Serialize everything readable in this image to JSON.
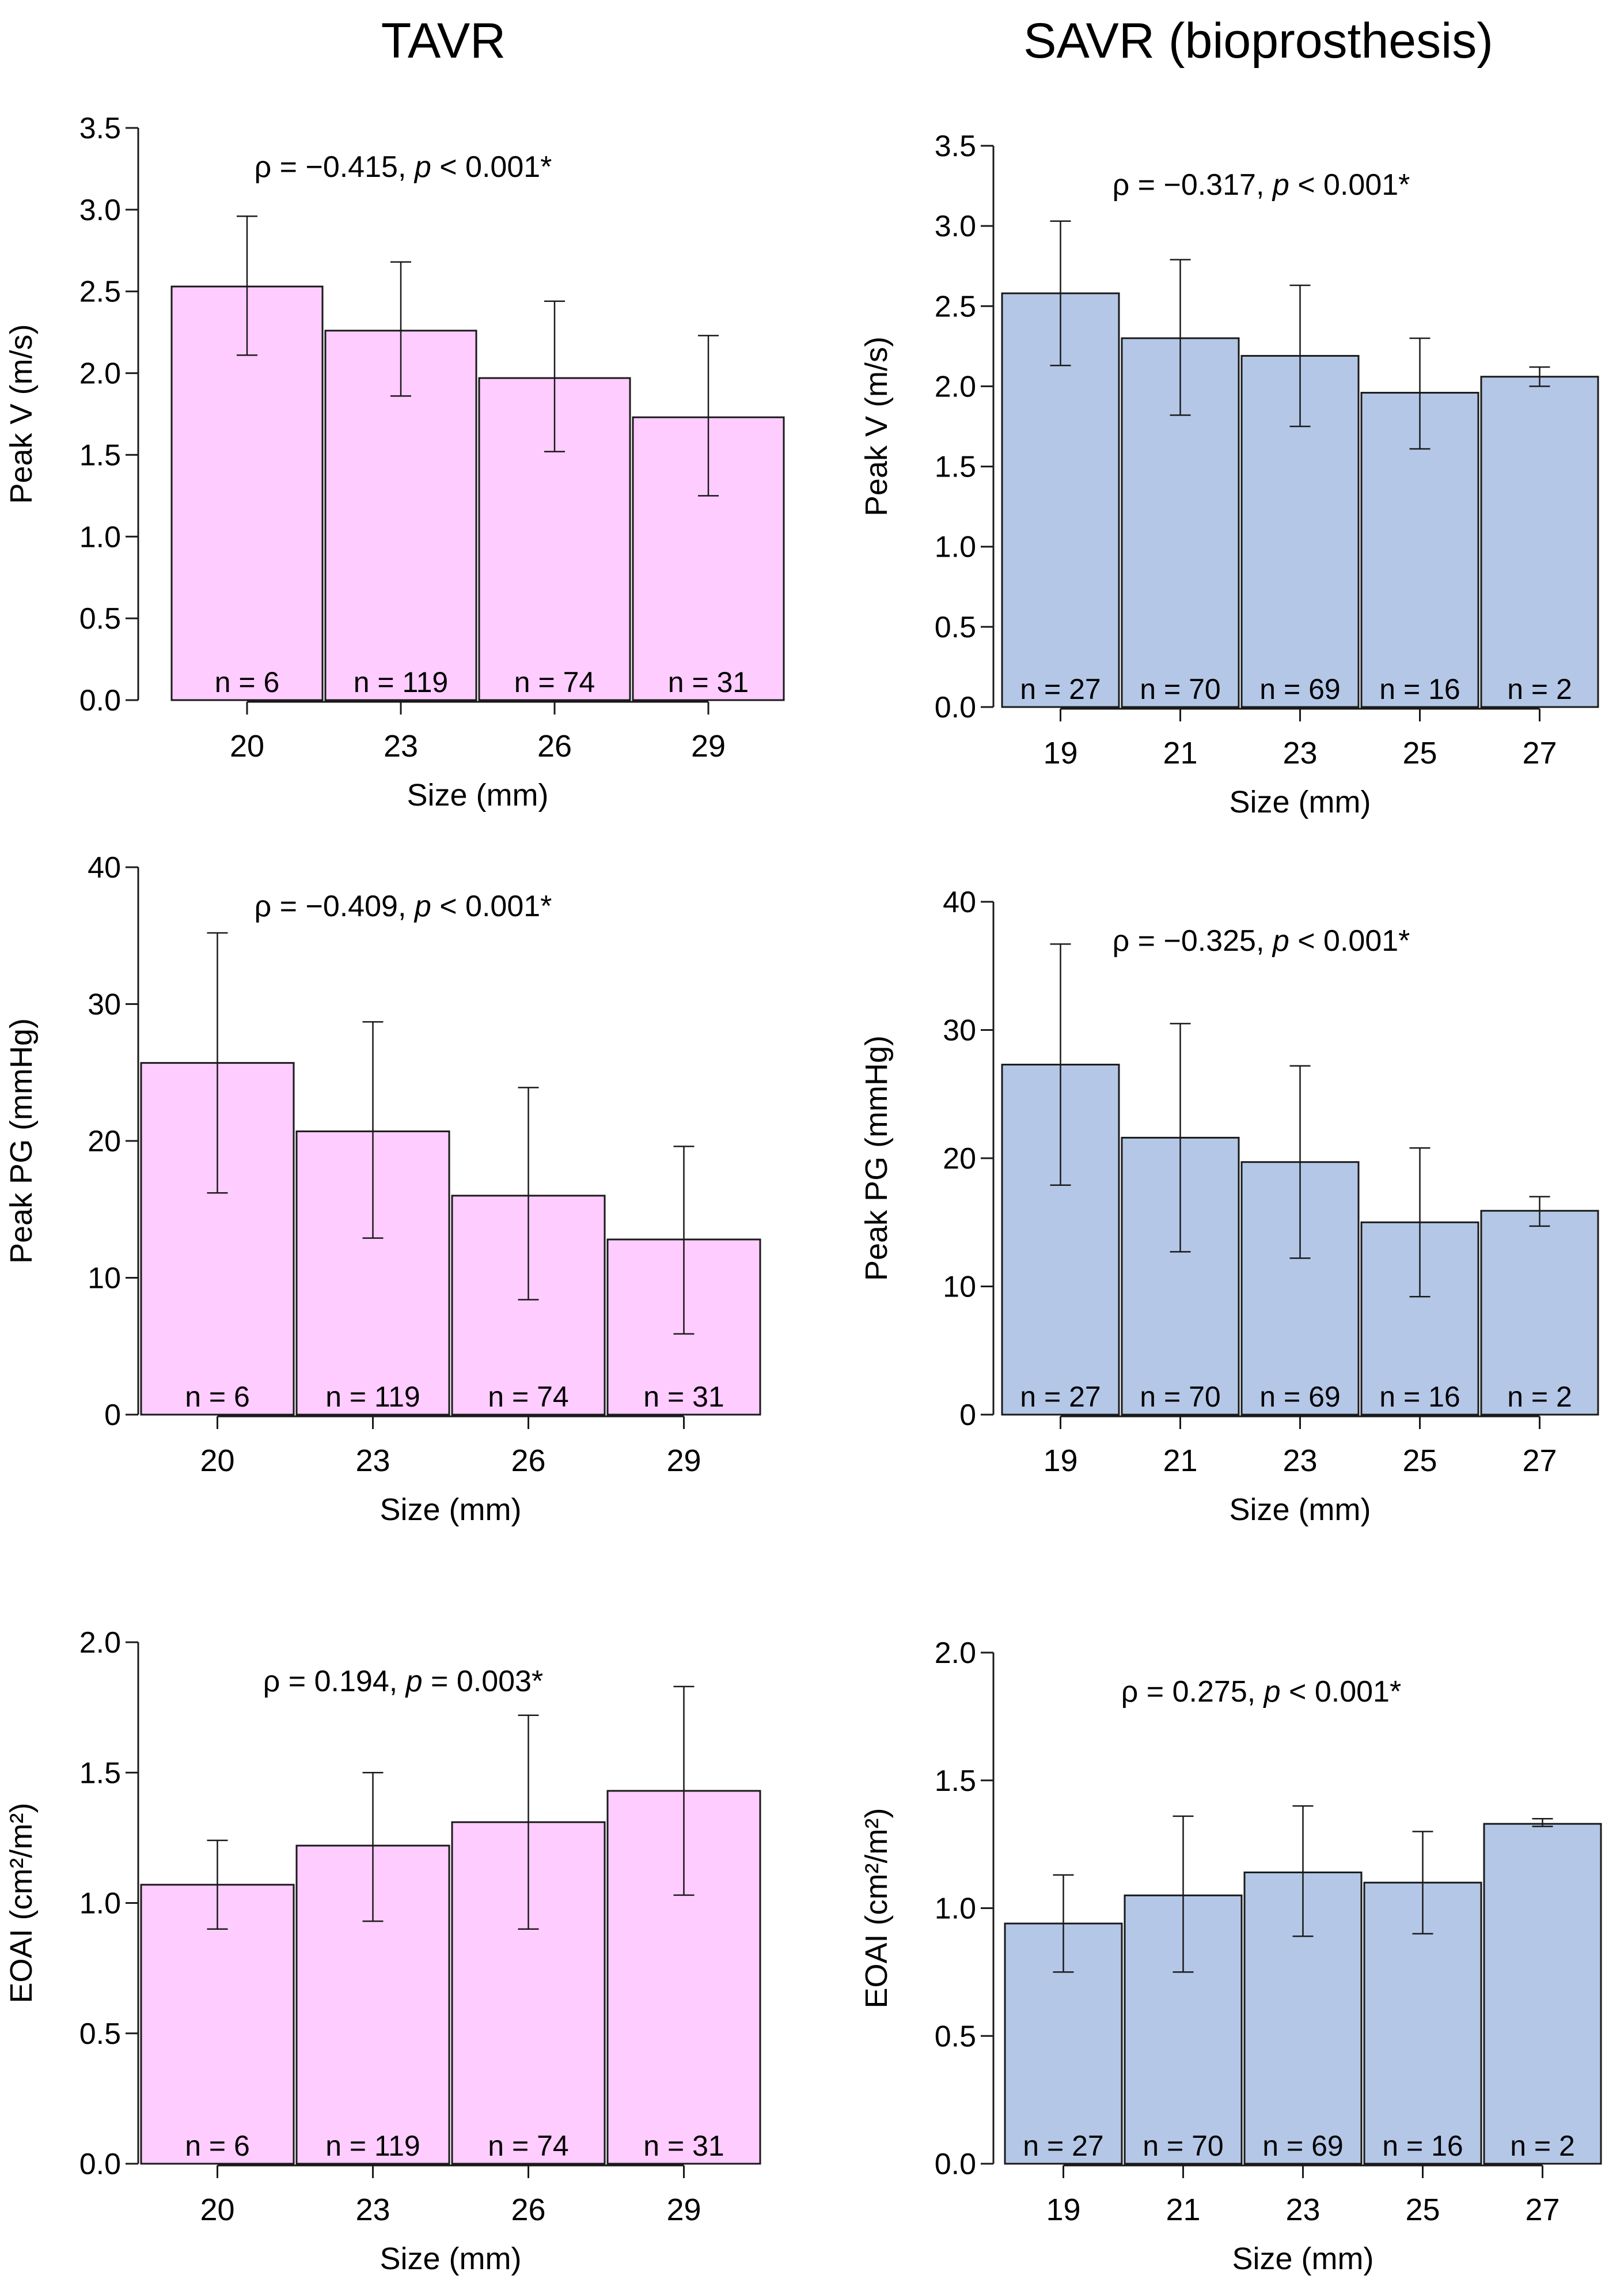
{
  "columns": [
    {
      "title": "TAVR"
    },
    {
      "title": "SAVR (bioprosthesis)"
    }
  ],
  "colors": {
    "tavr_fill": "#FFCCFF",
    "savr_fill": "#B4C7E7",
    "stroke": "#1a1a1a"
  },
  "chart_data": [
    {
      "id": "tavr-peak-v",
      "group": "TAVR",
      "type": "bar",
      "title": "",
      "xlabel": "Size (mm)",
      "ylabel": "Peak V (m/s)",
      "ylim": [
        0,
        3.5
      ],
      "yticks": [
        "0.0",
        "0.5",
        "1.0",
        "1.5",
        "2.0",
        "2.5",
        "3.0",
        "3.5"
      ],
      "categories": [
        "20",
        "23",
        "26",
        "29"
      ],
      "values": [
        2.53,
        2.26,
        1.97,
        1.73
      ],
      "error_low": [
        2.11,
        1.86,
        1.52,
        1.25
      ],
      "error_high": [
        2.96,
        2.68,
        2.44,
        2.23
      ],
      "n_labels": [
        "n = 6",
        "n = 119",
        "n = 74",
        "n = 31"
      ],
      "stat_rho": "ρ = −0.415, ",
      "stat_p": "p",
      "stat_rest": " < 0.001*"
    },
    {
      "id": "savr-peak-v",
      "group": "SAVR (bioprosthesis)",
      "type": "bar",
      "title": "",
      "xlabel": "Size (mm)",
      "ylabel": "Peak V (m/s)",
      "ylim": [
        0,
        3.5
      ],
      "yticks": [
        "0.0",
        "0.5",
        "1.0",
        "1.5",
        "2.0",
        "2.5",
        "3.0",
        "3.5"
      ],
      "categories": [
        "19",
        "21",
        "23",
        "25",
        "27"
      ],
      "values": [
        2.58,
        2.3,
        2.19,
        1.96,
        2.06
      ],
      "error_low": [
        2.13,
        1.82,
        1.75,
        1.61,
        2.0
      ],
      "error_high": [
        3.03,
        2.79,
        2.63,
        2.3,
        2.12
      ],
      "n_labels": [
        "n = 27",
        "n = 70",
        "n = 69",
        "n = 16",
        "n = 2"
      ],
      "stat_rho": "ρ = −0.317, ",
      "stat_p": "p",
      "stat_rest": " < 0.001*"
    },
    {
      "id": "tavr-peak-pg",
      "group": "TAVR",
      "type": "bar",
      "title": "",
      "xlabel": "Size (mm)",
      "ylabel": "Peak PG (mmHg)",
      "ylim": [
        0,
        40
      ],
      "yticks": [
        "0",
        "10",
        "20",
        "30",
        "40"
      ],
      "categories": [
        "20",
        "23",
        "26",
        "29"
      ],
      "values": [
        25.7,
        20.7,
        16.0,
        12.8
      ],
      "error_low": [
        16.2,
        12.9,
        8.4,
        5.9
      ],
      "error_high": [
        35.2,
        28.7,
        23.9,
        19.6
      ],
      "n_labels": [
        "n = 6",
        "n = 119",
        "n = 74",
        "n = 31"
      ],
      "stat_rho": "ρ = −0.409, ",
      "stat_p": "p",
      "stat_rest": " < 0.001*"
    },
    {
      "id": "savr-peak-pg",
      "group": "SAVR (bioprosthesis)",
      "type": "bar",
      "title": "",
      "xlabel": "Size (mm)",
      "ylabel": "Peak PG (mmHg)",
      "ylim": [
        0,
        40
      ],
      "yticks": [
        "0",
        "10",
        "20",
        "30",
        "40"
      ],
      "categories": [
        "19",
        "21",
        "23",
        "25",
        "27"
      ],
      "values": [
        27.3,
        21.6,
        19.7,
        15.0,
        15.9
      ],
      "error_low": [
        17.9,
        12.7,
        12.2,
        9.2,
        14.7
      ],
      "error_high": [
        36.7,
        30.5,
        27.2,
        20.8,
        17.0
      ],
      "n_labels": [
        "n = 27",
        "n = 70",
        "n = 69",
        "n = 16",
        "n = 2"
      ],
      "stat_rho": "ρ = −0.325, ",
      "stat_p": "p",
      "stat_rest": " < 0.001*"
    },
    {
      "id": "tavr-eoai",
      "group": "TAVR",
      "type": "bar",
      "title": "",
      "xlabel": "Size (mm)",
      "ylabel": "EOAI (cm²/m²)",
      "ylim": [
        0,
        2.0
      ],
      "yticks": [
        "0.0",
        "0.5",
        "1.0",
        "1.5",
        "2.0"
      ],
      "categories": [
        "20",
        "23",
        "26",
        "29"
      ],
      "values": [
        1.07,
        1.22,
        1.31,
        1.43
      ],
      "error_low": [
        0.9,
        0.93,
        0.9,
        1.03
      ],
      "error_high": [
        1.24,
        1.5,
        1.72,
        1.83
      ],
      "n_labels": [
        "n = 6",
        "n = 119",
        "n = 74",
        "n = 31"
      ],
      "stat_rho": "ρ = 0.194, ",
      "stat_p": "p",
      "stat_rest": " = 0.003*"
    },
    {
      "id": "savr-eoai",
      "group": "SAVR (bioprosthesis)",
      "type": "bar",
      "title": "",
      "xlabel": "Size (mm)",
      "ylabel": "EOAI (cm²/m²)",
      "ylim": [
        0,
        2.0
      ],
      "yticks": [
        "0.0",
        "0.5",
        "1.0",
        "1.5",
        "2.0"
      ],
      "categories": [
        "19",
        "21",
        "23",
        "25",
        "27"
      ],
      "values": [
        0.94,
        1.05,
        1.14,
        1.1,
        1.33
      ],
      "error_low": [
        0.75,
        0.75,
        0.89,
        0.9,
        1.32
      ],
      "error_high": [
        1.13,
        1.36,
        1.4,
        1.3,
        1.35
      ],
      "n_labels": [
        "n = 27",
        "n = 70",
        "n = 69",
        "n = 16",
        "n = 2"
      ],
      "stat_rho": "ρ = 0.275, ",
      "stat_p": "p",
      "stat_rest": " < 0.001*"
    }
  ]
}
